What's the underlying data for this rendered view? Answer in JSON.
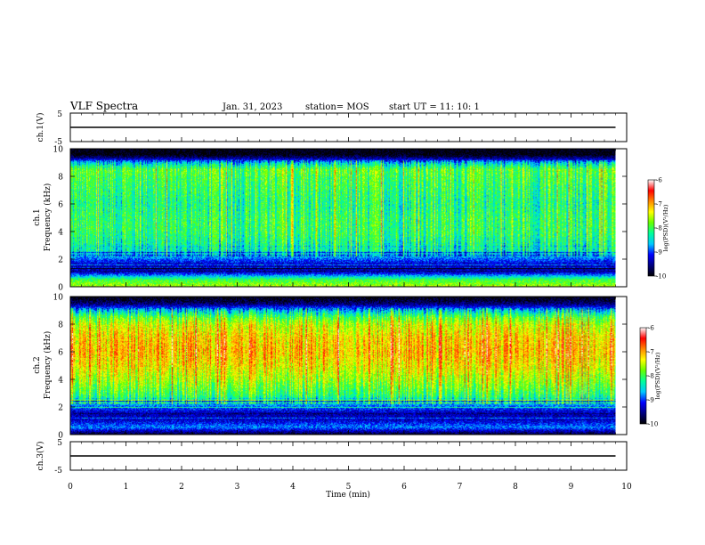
{
  "header": {
    "title": "VLF Spectra",
    "date": "Jan. 31, 2023",
    "station": "station= MOS",
    "start": "start  UT =   11: 10: 1"
  },
  "chart_data": [
    {
      "type": "line",
      "name": "ch1-waveform",
      "ylabel": "ch.1(V)",
      "ylim": [
        -5,
        5
      ],
      "yticks": [
        "5",
        "-5"
      ],
      "x": [
        0,
        10
      ],
      "y": [
        0,
        0
      ]
    },
    {
      "type": "heatmap",
      "name": "ch1-spectrogram",
      "ylabel_channel": "ch.1",
      "ylabel": "Frequency (kHz)",
      "ylim": [
        0,
        10
      ],
      "yticks": [
        "0",
        "2",
        "4",
        "6",
        "8",
        "10"
      ],
      "data_extent_min": 9.8,
      "colorbar": {
        "label": "log(PSD)(V²/Hz)",
        "min": -10,
        "max": -6,
        "ticks": [
          "-6",
          "-7",
          "-8",
          "-9",
          "-10"
        ]
      },
      "colormap": [
        "#000000",
        "#00007f",
        "#0000ff",
        "#00c8ff",
        "#00ff99",
        "#66ff00",
        "#ffff00",
        "#ff8800",
        "#ff0000",
        "#ffffff"
      ],
      "band_profile_khz": [
        0,
        0.5,
        1,
        1.5,
        2,
        2.5,
        3,
        4,
        5,
        6,
        7,
        8,
        8.5,
        9,
        9.3,
        9.6,
        10
      ],
      "band_profile_log_psd": [
        -7.6,
        -8.0,
        -9.3,
        -9.4,
        -8.9,
        -8.5,
        -8.3,
        -8.1,
        -8.1,
        -8.2,
        -8.1,
        -8.0,
        -7.9,
        -8.6,
        -9.4,
        -10,
        -10
      ]
    },
    {
      "type": "heatmap",
      "name": "ch2-spectrogram",
      "ylabel_channel": "ch.2",
      "ylabel": "Frequency (kHz)",
      "ylim": [
        0,
        10
      ],
      "yticks": [
        "0",
        "2",
        "4",
        "6",
        "8",
        "10"
      ],
      "data_extent_min": 9.8,
      "colorbar": {
        "label": "log(PSD)(V²/Hz)",
        "min": -10,
        "max": -6,
        "ticks": [
          "-6",
          "-7",
          "-8",
          "-9",
          "-10"
        ]
      },
      "colormap": [
        "#000000",
        "#00007f",
        "#0000ff",
        "#00c8ff",
        "#00ff99",
        "#66ff00",
        "#ffff00",
        "#ff8800",
        "#ff0000",
        "#ffffff"
      ],
      "band_profile_khz": [
        0,
        0.5,
        1,
        1.5,
        2,
        2.5,
        3,
        4,
        5,
        6,
        7,
        8,
        8.5,
        9,
        9.5,
        10
      ],
      "band_profile_log_psd": [
        -9.8,
        -8.8,
        -9.3,
        -9.4,
        -8.9,
        -8.3,
        -8.0,
        -7.6,
        -7.3,
        -7.1,
        -7.2,
        -7.5,
        -7.9,
        -8.6,
        -9.6,
        -10
      ]
    },
    {
      "type": "line",
      "name": "ch3-waveform",
      "ylabel": "ch.3(V)",
      "ylim": [
        -5,
        5
      ],
      "yticks": [
        "5",
        "-5"
      ],
      "x": [
        0,
        10
      ],
      "y": [
        0,
        0
      ]
    }
  ],
  "xaxis": {
    "label": "Time (min)",
    "xlim": [
      0,
      10
    ],
    "ticks": [
      "0",
      "1",
      "2",
      "3",
      "4",
      "5",
      "6",
      "7",
      "8",
      "9",
      "10"
    ]
  }
}
